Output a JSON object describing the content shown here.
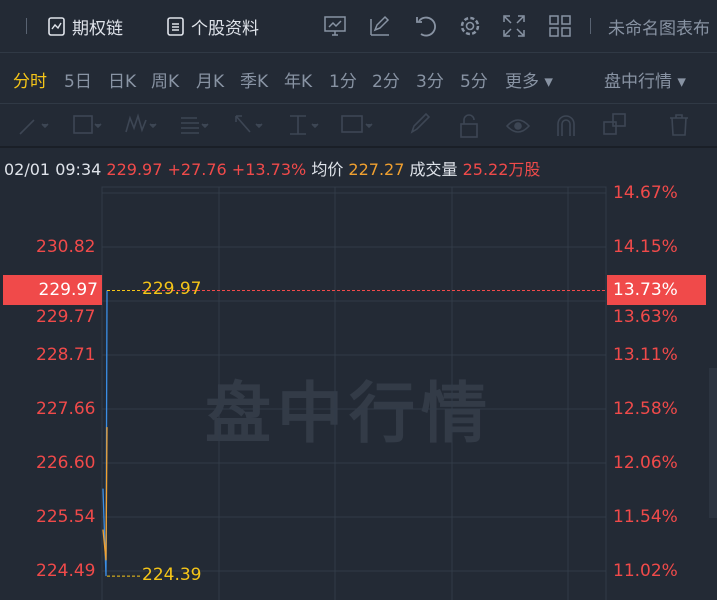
{
  "topbar": {
    "options_chain": "期权链",
    "stock_profile": "个股资料",
    "chart_name": "未命名图表布"
  },
  "tabs": [
    {
      "label": "分时",
      "active": true
    },
    {
      "label": "5日"
    },
    {
      "label": "日K"
    },
    {
      "label": "周K"
    },
    {
      "label": "月K"
    },
    {
      "label": "季K"
    },
    {
      "label": "年K"
    },
    {
      "label": "1分"
    },
    {
      "label": "2分"
    },
    {
      "label": "3分"
    },
    {
      "label": "5分"
    },
    {
      "label": "更多 ▾"
    }
  ],
  "session_select": "盘中行情 ▾",
  "info": {
    "datetime": "02/01 09:34",
    "price": "229.97",
    "change": "+27.76",
    "change_pct": "+13.73%",
    "avg_label": "均价",
    "avg": "227.27",
    "volume_label": "成交量",
    "volume": "25.22万股"
  },
  "watermark": "盘中行情",
  "colors": {
    "up": "#f04a4a",
    "avg": "#f0a030",
    "price_line": "#3a8ee6",
    "active_tab": "#f5c518"
  },
  "chart_data": {
    "type": "line",
    "y_ticks_left": [
      "230.82",
      "229.77",
      "228.71",
      "227.66",
      "226.60",
      "225.54",
      "224.49"
    ],
    "y_ticks_right": [
      "14.67%",
      "14.15%",
      "13.63%",
      "13.11%",
      "12.58%",
      "12.06%",
      "11.54%",
      "11.02%"
    ],
    "ylim": [
      224.49,
      231.87
    ],
    "current_price": "229.97",
    "current_pct": "13.73%",
    "high_label": "229.97",
    "low_label": "224.39",
    "series": [
      {
        "values": [
          226.1,
          225.2,
          224.39,
          229.97
        ]
      },
      {
        "values": [
          225.3,
          225.0,
          224.7,
          227.3
        ]
      }
    ]
  }
}
